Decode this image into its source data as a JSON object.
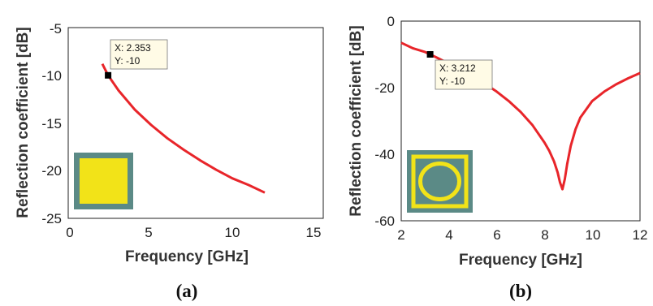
{
  "chart_data": [
    {
      "type": "line",
      "panel_label": "(a)",
      "xlabel": "Frequency [GHz]",
      "ylabel": "Reflection coefficient [dB]",
      "xlim": [
        0,
        15
      ],
      "ylim": [
        -25,
        -5
      ],
      "xticks": [
        "0",
        "5",
        "10",
        "15"
      ],
      "yticks": [
        "-5",
        "-10",
        "-15",
        "-20",
        "-25"
      ],
      "grid": false,
      "line_color": "#e8252a",
      "series": [
        {
          "x": [
            2,
            2.353,
            3,
            4,
            5,
            6,
            7,
            8,
            9,
            10,
            11,
            12
          ],
          "y": [
            -8.8,
            -10,
            -11.6,
            -13.6,
            -15.2,
            -16.6,
            -17.8,
            -18.9,
            -19.9,
            -20.8,
            -21.5,
            -22.3
          ]
        }
      ],
      "datatip": {
        "x_text": "X: 2.353",
        "y_text": "Y: -10",
        "x": 2.353,
        "y": -10
      },
      "inset": {
        "kind": "solid-patch",
        "outer_color": "#5b8a86",
        "inner_color": "#f2e318"
      }
    },
    {
      "type": "line",
      "panel_label": "(b)",
      "xlabel": "Frequency [GHz]",
      "ylabel": "Reflection coefficient [dB]",
      "xlim": [
        2,
        12
      ],
      "ylim": [
        -60,
        0
      ],
      "xticks": [
        "2",
        "4",
        "6",
        "8",
        "10",
        "12"
      ],
      "yticks": [
        "0",
        "-20",
        "-40",
        "-60"
      ],
      "grid": false,
      "line_color": "#e8252a",
      "series": [
        {
          "x": [
            2,
            2.5,
            3,
            3.212,
            3.5,
            4,
            4.5,
            5,
            5.5,
            6,
            6.5,
            7,
            7.5,
            8,
            8.2,
            8.4,
            8.55,
            8.65,
            8.75,
            8.85,
            8.95,
            9.1,
            9.3,
            9.5,
            10,
            10.5,
            11,
            11.5,
            12
          ],
          "y": [
            -6.5,
            -8.2,
            -9.3,
            -10,
            -11,
            -12.8,
            -14.6,
            -16.6,
            -18.8,
            -21.2,
            -24,
            -27.3,
            -31.3,
            -36.5,
            -39,
            -42.2,
            -45.5,
            -48.5,
            -50.5,
            -47.5,
            -43,
            -37.5,
            -32.5,
            -29,
            -24,
            -21.2,
            -19,
            -17.2,
            -15.6
          ]
        }
      ],
      "datatip": {
        "x_text": "X: 3.212",
        "y_text": "Y: -10",
        "x": 3.212,
        "y": -10
      },
      "inset": {
        "kind": "ring-patch",
        "outer_color": "#5b8a86",
        "inner_color": "#f2e318"
      }
    }
  ]
}
